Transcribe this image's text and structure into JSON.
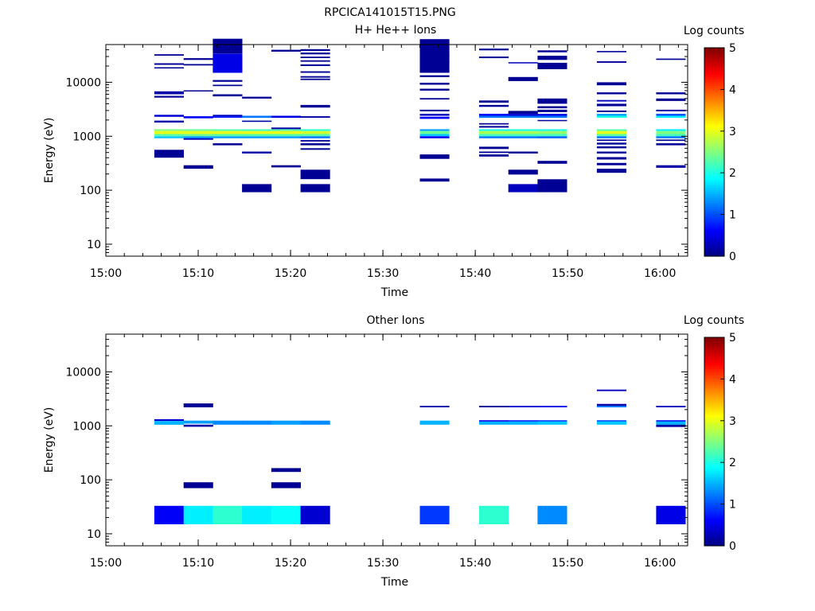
{
  "figure_title": "RPCICA141015T15.PNG",
  "colorbar": {
    "label": "Log counts",
    "ticks": [
      "0",
      "1",
      "2",
      "3",
      "4",
      "5"
    ],
    "range": [
      0,
      5
    ],
    "colormap": "jet"
  },
  "chart_data": [
    {
      "type": "heatmap",
      "title": "H+ He++ Ions",
      "xlabel": "Time",
      "ylabel": "Energy (eV)",
      "yscale": "log",
      "ylim": [
        6,
        50000
      ],
      "xlim_minutes": [
        0,
        63
      ],
      "x_ticks": [
        "15:00",
        "15:10",
        "15:20",
        "15:30",
        "15:40",
        "15:50",
        "16:00"
      ],
      "y_ticks": [
        "10",
        "100",
        "1000",
        "10000"
      ],
      "columns_start": [
        "15:05:15",
        "15:08:25",
        "15:11:35",
        "15:14:45",
        "15:17:55",
        "15:21:05",
        "15:34:00",
        "15:40:25",
        "15:43:35",
        "15:46:45",
        "15:53:10",
        "15:59:35"
      ],
      "column_width_minutes": 3.2,
      "cells": [
        [
          0,
          31000,
          33000,
          0.1
        ],
        [
          0,
          21000,
          22500,
          0.1
        ],
        [
          0,
          18000,
          19000,
          0.1
        ],
        [
          0,
          6000,
          6800,
          0.2
        ],
        [
          0,
          5200,
          5600,
          0.1
        ],
        [
          0,
          2300,
          2500,
          0.4
        ],
        [
          0,
          1800,
          1950,
          0.2
        ],
        [
          0,
          1250,
          1350,
          2.5
        ],
        [
          0,
          1100,
          1250,
          3.0
        ],
        [
          0,
          1000,
          1100,
          2.3
        ],
        [
          0,
          920,
          1000,
          1.6
        ],
        [
          0,
          400,
          560,
          0.1
        ],
        [
          1,
          26000,
          28000,
          0.1
        ],
        [
          1,
          20500,
          21800,
          0.1
        ],
        [
          1,
          6800,
          7100,
          0.1
        ],
        [
          1,
          2150,
          2350,
          0.6
        ],
        [
          1,
          1250,
          1350,
          2.4
        ],
        [
          1,
          1100,
          1250,
          3.0
        ],
        [
          1,
          1000,
          1100,
          2.4
        ],
        [
          1,
          920,
          1000,
          1.4
        ],
        [
          1,
          860,
          920,
          0.3
        ],
        [
          1,
          250,
          290,
          0.1
        ],
        [
          2,
          39000,
          42000,
          0.1
        ],
        [
          2,
          16500,
          17500,
          0.1
        ],
        [
          2,
          10200,
          11000,
          0.1
        ],
        [
          2,
          8500,
          9000,
          0.1
        ],
        [
          2,
          5500,
          6000,
          0.1
        ],
        [
          2,
          2350,
          2500,
          0.3
        ],
        [
          2,
          2200,
          2350,
          0.7
        ],
        [
          2,
          1250,
          1350,
          2.3
        ],
        [
          2,
          1100,
          1250,
          3.0
        ],
        [
          2,
          1000,
          1100,
          2.3
        ],
        [
          2,
          920,
          1000,
          1.4
        ],
        [
          2,
          680,
          740,
          0.1
        ],
        [
          2,
          34000,
          64000,
          0.1
        ],
        [
          2,
          15000,
          34000,
          0.5
        ],
        [
          3,
          5000,
          5400,
          0.1
        ],
        [
          3,
          2200,
          2400,
          1.2
        ],
        [
          3,
          1850,
          1950,
          0.2
        ],
        [
          3,
          1250,
          1350,
          2.2
        ],
        [
          3,
          1100,
          1250,
          3.0
        ],
        [
          3,
          1000,
          1100,
          2.3
        ],
        [
          3,
          920,
          1000,
          1.4
        ],
        [
          3,
          480,
          520,
          0.2
        ],
        [
          3,
          92,
          130,
          0.1
        ],
        [
          4,
          37000,
          40000,
          0.1
        ],
        [
          4,
          2200,
          2400,
          0.5
        ],
        [
          4,
          1350,
          1450,
          0.2
        ],
        [
          4,
          1250,
          1350,
          2.3
        ],
        [
          4,
          1100,
          1250,
          3.0
        ],
        [
          4,
          1000,
          1100,
          2.3
        ],
        [
          4,
          920,
          1000,
          1.4
        ],
        [
          4,
          265,
          290,
          0.1
        ],
        [
          5,
          38000,
          41000,
          0.1
        ],
        [
          5,
          33000,
          35500,
          0.1
        ],
        [
          5,
          28000,
          29800,
          0.1
        ],
        [
          5,
          24000,
          25500,
          0.1
        ],
        [
          5,
          20000,
          21500,
          0.1
        ],
        [
          5,
          15000,
          16000,
          0.1
        ],
        [
          5,
          12200,
          13000,
          0.1
        ],
        [
          5,
          11000,
          11700,
          0.1
        ],
        [
          5,
          3400,
          3800,
          0.1
        ],
        [
          5,
          2200,
          2350,
          0.2
        ],
        [
          5,
          1250,
          1350,
          2.1
        ],
        [
          5,
          1100,
          1250,
          2.9
        ],
        [
          5,
          1000,
          1100,
          2.3
        ],
        [
          5,
          920,
          1000,
          1.2
        ],
        [
          5,
          800,
          850,
          0.1
        ],
        [
          5,
          680,
          740,
          0.1
        ],
        [
          5,
          560,
          600,
          0.1
        ],
        [
          5,
          160,
          240,
          0.1
        ],
        [
          5,
          92,
          130,
          0.1
        ],
        [
          6,
          30000,
          32000,
          0.1
        ],
        [
          6,
          23000,
          24500,
          0.1
        ],
        [
          6,
          12500,
          13500,
          0.1
        ],
        [
          6,
          9000,
          9800,
          0.1
        ],
        [
          6,
          7000,
          7600,
          0.1
        ],
        [
          6,
          4800,
          5100,
          0.1
        ],
        [
          6,
          2900,
          3100,
          0.1
        ],
        [
          6,
          2400,
          2600,
          0.3
        ],
        [
          6,
          2100,
          2300,
          0.6
        ],
        [
          6,
          1250,
          1350,
          1.4
        ],
        [
          6,
          1100,
          1250,
          2.4
        ],
        [
          6,
          1000,
          1100,
          1.6
        ],
        [
          6,
          920,
          1000,
          0.6
        ],
        [
          6,
          380,
          460,
          0.1
        ],
        [
          6,
          145,
          165,
          0.1
        ],
        [
          6,
          15000,
          63000,
          0.1
        ],
        [
          7,
          39000,
          42000,
          0.1
        ],
        [
          7,
          28000,
          30000,
          0.1
        ],
        [
          7,
          4200,
          4600,
          0.1
        ],
        [
          7,
          3500,
          3800,
          0.1
        ],
        [
          7,
          2400,
          2600,
          0.6
        ],
        [
          7,
          2200,
          2400,
          1.2
        ],
        [
          7,
          1650,
          1750,
          0.1
        ],
        [
          7,
          1450,
          1550,
          0.1
        ],
        [
          7,
          1250,
          1350,
          2.0
        ],
        [
          7,
          1100,
          1250,
          2.7
        ],
        [
          7,
          1000,
          1100,
          2.2
        ],
        [
          7,
          920,
          1000,
          1.2
        ],
        [
          7,
          580,
          640,
          0.1
        ],
        [
          7,
          490,
          520,
          0.1
        ],
        [
          7,
          420,
          460,
          0.1
        ],
        [
          8,
          22500,
          23500,
          0.3
        ],
        [
          8,
          10500,
          12500,
          0.1
        ],
        [
          8,
          2600,
          2950,
          0.1
        ],
        [
          8,
          2400,
          2600,
          0.4
        ],
        [
          8,
          2200,
          2400,
          1.2
        ],
        [
          8,
          1250,
          1350,
          2.0
        ],
        [
          8,
          1100,
          1250,
          2.7
        ],
        [
          8,
          1000,
          1100,
          2.2
        ],
        [
          8,
          920,
          1000,
          1.2
        ],
        [
          8,
          480,
          520,
          0.1
        ],
        [
          8,
          195,
          240,
          0.1
        ],
        [
          8,
          92,
          130,
          0.3
        ],
        [
          9,
          36000,
          39000,
          0.1
        ],
        [
          9,
          26000,
          31000,
          0.1
        ],
        [
          9,
          17500,
          23000,
          0.1
        ],
        [
          9,
          4000,
          5000,
          0.1
        ],
        [
          9,
          3300,
          3600,
          0.1
        ],
        [
          9,
          2800,
          3100,
          0.1
        ],
        [
          9,
          2400,
          2600,
          0.5
        ],
        [
          9,
          2200,
          2400,
          1.2
        ],
        [
          9,
          1900,
          2000,
          0.2
        ],
        [
          9,
          1250,
          1350,
          2.0
        ],
        [
          9,
          1100,
          1250,
          2.6
        ],
        [
          9,
          1000,
          1100,
          2.2
        ],
        [
          9,
          920,
          1000,
          1.1
        ],
        [
          9,
          310,
          350,
          0.1
        ],
        [
          9,
          92,
          160,
          0.1
        ],
        [
          10,
          36000,
          38000,
          0.1
        ],
        [
          10,
          23000,
          24500,
          0.1
        ],
        [
          10,
          8800,
          10000,
          0.1
        ],
        [
          10,
          6000,
          6500,
          0.1
        ],
        [
          10,
          4400,
          4700,
          0.3
        ],
        [
          10,
          3600,
          4000,
          0.1
        ],
        [
          10,
          2800,
          3000,
          0.1
        ],
        [
          10,
          2400,
          2600,
          1.4
        ],
        [
          10,
          2200,
          2400,
          2.0
        ],
        [
          10,
          1250,
          1350,
          2.3
        ],
        [
          10,
          1100,
          1250,
          3.0
        ],
        [
          10,
          1000,
          1100,
          2.3
        ],
        [
          10,
          920,
          1000,
          1.2
        ],
        [
          10,
          820,
          870,
          0.1
        ],
        [
          10,
          700,
          760,
          0.1
        ],
        [
          10,
          600,
          650,
          0.1
        ],
        [
          10,
          480,
          520,
          0.1
        ],
        [
          10,
          370,
          410,
          0.1
        ],
        [
          10,
          290,
          320,
          0.1
        ],
        [
          10,
          210,
          250,
          0.1
        ],
        [
          11,
          26000,
          27500,
          0.1
        ],
        [
          11,
          6000,
          6500,
          0.1
        ],
        [
          11,
          4500,
          5000,
          0.1
        ],
        [
          11,
          2900,
          3100,
          0.2
        ],
        [
          11,
          2400,
          2600,
          1.0
        ],
        [
          11,
          2200,
          2400,
          1.8
        ],
        [
          11,
          1250,
          1350,
          1.8
        ],
        [
          11,
          1100,
          1250,
          2.5
        ],
        [
          11,
          1000,
          1100,
          2.2
        ],
        [
          11,
          920,
          1000,
          1.2
        ],
        [
          11,
          820,
          870,
          0.1
        ],
        [
          11,
          680,
          740,
          0.1
        ],
        [
          11,
          260,
          290,
          0.2
        ]
      ]
    },
    {
      "type": "heatmap",
      "title": "Other Ions",
      "xlabel": "Time",
      "ylabel": "Energy (eV)",
      "yscale": "log",
      "ylim": [
        6,
        50000
      ],
      "xlim_minutes": [
        0,
        63
      ],
      "x_ticks": [
        "15:00",
        "15:10",
        "15:20",
        "15:30",
        "15:40",
        "15:50",
        "16:00"
      ],
      "y_ticks": [
        "10",
        "100",
        "1000",
        "10000"
      ],
      "columns_start": [
        "15:05:15",
        "15:08:25",
        "15:11:35",
        "15:14:45",
        "15:17:55",
        "15:21:05",
        "15:34:00",
        "15:40:25",
        "15:43:35",
        "15:46:45",
        "15:53:10",
        "15:59:35"
      ],
      "column_width_minutes": 3.2,
      "cells": [
        [
          0,
          1230,
          1330,
          0.4
        ],
        [
          0,
          1050,
          1230,
          1.5
        ],
        [
          0,
          15,
          33,
          0.6
        ],
        [
          1,
          2200,
          2600,
          0.1
        ],
        [
          1,
          1100,
          1250,
          1.4
        ],
        [
          1,
          960,
          1050,
          0.2
        ],
        [
          1,
          70,
          90,
          0.1
        ],
        [
          1,
          15,
          33,
          1.8
        ],
        [
          2,
          1050,
          1250,
          1.3
        ],
        [
          2,
          15,
          33,
          2.1
        ],
        [
          3,
          1050,
          1250,
          1.3
        ],
        [
          3,
          15,
          33,
          1.8
        ],
        [
          4,
          1050,
          1250,
          1.4
        ],
        [
          4,
          140,
          165,
          0.1
        ],
        [
          4,
          70,
          90,
          0.1
        ],
        [
          4,
          15,
          33,
          1.9
        ],
        [
          5,
          1050,
          1250,
          1.3
        ],
        [
          5,
          15,
          33,
          0.4
        ],
        [
          6,
          2200,
          2350,
          0.2
        ],
        [
          6,
          1050,
          1250,
          1.5
        ],
        [
          6,
          15,
          33,
          0.9
        ],
        [
          7,
          2200,
          2350,
          0.1
        ],
        [
          7,
          1200,
          1270,
          0.5
        ],
        [
          7,
          1050,
          1200,
          1.5
        ],
        [
          7,
          15,
          33,
          2.1
        ],
        [
          8,
          2200,
          2350,
          0.4
        ],
        [
          8,
          1200,
          1270,
          0.8
        ],
        [
          8,
          1050,
          1200,
          1.5
        ],
        [
          9,
          2200,
          2350,
          0.5
        ],
        [
          9,
          1200,
          1270,
          0.9
        ],
        [
          9,
          1050,
          1200,
          1.6
        ],
        [
          9,
          15,
          33,
          1.3
        ],
        [
          10,
          4400,
          4700,
          0.3
        ],
        [
          10,
          2350,
          2550,
          0.2
        ],
        [
          10,
          2200,
          2350,
          1.2
        ],
        [
          10,
          1200,
          1270,
          1.0
        ],
        [
          10,
          1050,
          1200,
          1.6
        ],
        [
          11,
          2200,
          2350,
          0.3
        ],
        [
          11,
          1200,
          1270,
          0.7
        ],
        [
          11,
          1050,
          1200,
          1.5
        ],
        [
          11,
          950,
          1050,
          0.2
        ],
        [
          11,
          15,
          33,
          0.5
        ]
      ]
    }
  ]
}
